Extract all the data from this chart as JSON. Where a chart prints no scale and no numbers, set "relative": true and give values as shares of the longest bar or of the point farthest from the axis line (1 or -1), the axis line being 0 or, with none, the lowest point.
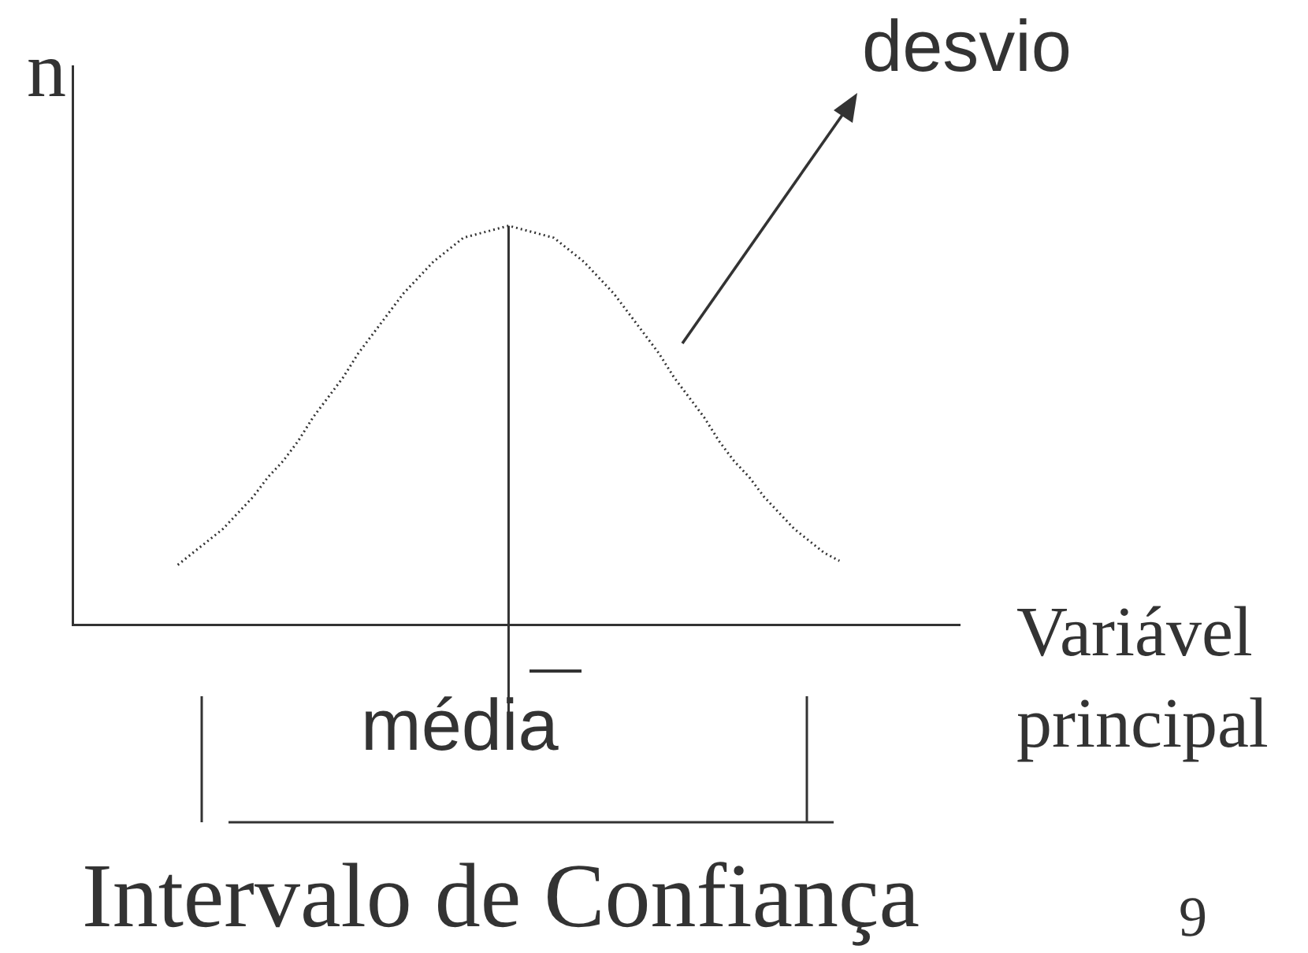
{
  "chart_data": {
    "type": "line",
    "relative": true,
    "ylabel": "n",
    "xlabel": "Variável principal",
    "legend": false,
    "grid": false,
    "marker": "none",
    "line_style": "dotted",
    "categories": [
      null,
      null,
      null,
      null,
      null,
      null,
      null,
      null,
      null,
      null,
      null,
      null,
      null,
      null,
      null,
      null,
      null,
      null,
      null,
      null,
      null,
      null,
      null,
      null,
      null,
      null,
      null,
      null,
      null,
      null,
      null,
      null,
      null,
      null,
      null,
      null,
      null,
      null,
      null,
      null,
      null,
      null,
      null,
      null,
      null,
      null,
      null,
      null,
      null,
      null,
      null,
      null,
      null,
      null,
      null,
      null,
      null,
      null,
      null,
      null
    ],
    "series": [
      {
        "color": "#333333",
        "values": [
          null,
          null,
          null,
          null,
          null,
          null,
          null,
          0.15,
          0.18,
          0.21,
          0.24,
          0.28,
          0.32,
          0.37,
          0.41,
          0.46,
          0.52,
          0.57,
          0.62,
          0.68,
          0.73,
          0.78,
          0.83,
          0.87,
          0.91,
          0.94,
          0.97,
          0.98,
          0.99,
          1,
          0.99,
          0.98,
          0.97,
          0.94,
          0.91,
          0.87,
          0.83,
          0.78,
          0.73,
          0.68,
          0.62,
          0.57,
          0.52,
          0.46,
          0.41,
          0.37,
          0.32,
          0.28,
          0.24,
          0.21,
          0.18,
          0.16,
          null,
          null,
          null,
          null,
          null,
          null,
          null,
          null
        ]
      }
    ],
    "annotations": [
      "desvio",
      "média",
      "Intervalo de Confiança",
      "9"
    ]
  }
}
